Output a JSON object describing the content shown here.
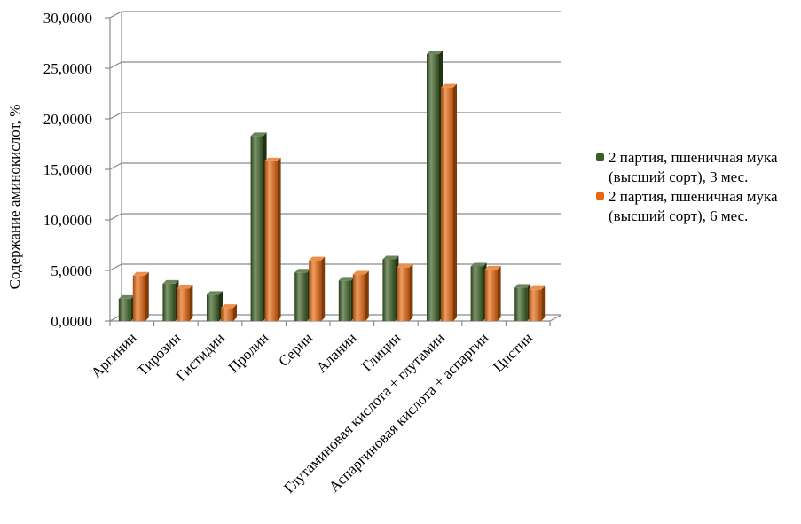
{
  "chart_data": {
    "type": "bar",
    "ylabel": "Содержание аминокислот, %",
    "ylim": [
      0,
      30
    ],
    "ytick_step": 5,
    "ytick_labels": [
      "0,0000",
      "5,0000",
      "10,0000",
      "15,0000",
      "20,0000",
      "25,0000",
      "30,0000"
    ],
    "grid": true,
    "legend_position": "right",
    "categories": [
      "Аргинин",
      "Тирозин",
      "Гистидин",
      "Пролин",
      "Серин",
      "Аланин",
      "Глицин",
      "Глутаминовая кислота + глутамин",
      "Аспаргиновая кислота + аспаргин",
      "Цистин"
    ],
    "series": [
      {
        "name": "2 партия, пшеничная мука (высший сорт), 3 мес.",
        "color": "#3a5e22",
        "values": [
          2.2,
          3.7,
          2.6,
          18.3,
          4.8,
          4.0,
          6.1,
          26.4,
          5.4,
          3.3
        ]
      },
      {
        "name": "2 партия, пшеничная мука (высший сорт), 6 мес.",
        "color": "#e8680e",
        "values": [
          4.5,
          3.2,
          1.3,
          15.8,
          6.0,
          4.6,
          5.3,
          23.1,
          5.1,
          3.1
        ]
      }
    ]
  }
}
